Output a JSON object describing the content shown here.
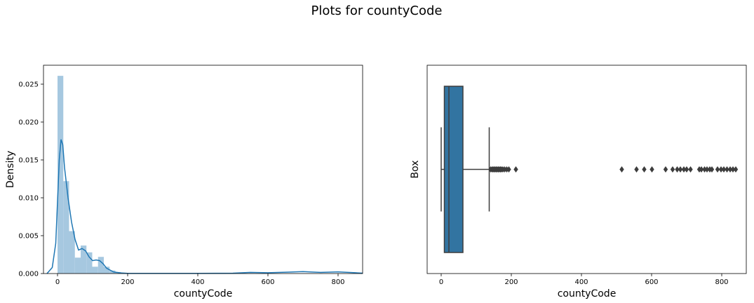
{
  "figure": {
    "suptitle": "Plots for countyCode"
  },
  "chart_data": [
    {
      "type": "histogram",
      "xlabel": "countyCode",
      "ylabel": "Density",
      "xlim": [
        -40,
        870
      ],
      "ylim": [
        0,
        0.0275
      ],
      "xticks": [
        0,
        200,
        400,
        600,
        800
      ],
      "yticks": [
        0.0,
        0.005,
        0.01,
        0.015,
        0.02,
        0.025
      ],
      "ytick_labels": [
        "0.000",
        "0.005",
        "0.010",
        "0.015",
        "0.020",
        "0.025"
      ],
      "bar_color": "#a6c8e0",
      "kde_color": "#1f77b4",
      "bins": [
        {
          "x0": 0,
          "x1": 16.5,
          "density": 0.0261
        },
        {
          "x0": 16.5,
          "x1": 33,
          "density": 0.0122
        },
        {
          "x0": 33,
          "x1": 49.5,
          "density": 0.0056
        },
        {
          "x0": 49.5,
          "x1": 66,
          "density": 0.0021
        },
        {
          "x0": 66,
          "x1": 82.5,
          "density": 0.0037
        },
        {
          "x0": 82.5,
          "x1": 99,
          "density": 0.0028
        },
        {
          "x0": 99,
          "x1": 115.5,
          "density": 0.0009
        },
        {
          "x0": 115.5,
          "x1": 132,
          "density": 0.0022
        },
        {
          "x0": 132,
          "x1": 148.5,
          "density": 0.0009
        },
        {
          "x0": 148.5,
          "x1": 165,
          "density": 0.0004
        },
        {
          "x0": 165,
          "x1": 181.5,
          "density": 0.0002
        },
        {
          "x0": 181.5,
          "x1": 198,
          "density": 0.0001
        }
      ],
      "kde": {
        "x": [
          -30,
          -15,
          -5,
          0,
          5,
          10,
          15,
          20,
          30,
          40,
          50,
          60,
          70,
          80,
          90,
          100,
          110,
          120,
          130,
          140,
          160,
          180,
          200,
          250,
          300,
          400,
          500,
          550,
          600,
          650,
          700,
          750,
          800,
          850,
          870
        ],
        "y": [
          0.0,
          0.0008,
          0.004,
          0.0095,
          0.015,
          0.0177,
          0.017,
          0.014,
          0.01,
          0.0068,
          0.0045,
          0.0031,
          0.0033,
          0.003,
          0.0022,
          0.0017,
          0.0018,
          0.0017,
          0.0013,
          0.0007,
          0.0002,
          8e-05,
          3e-05,
          2e-05,
          2e-05,
          2e-05,
          5e-05,
          0.00015,
          0.0001,
          0.00018,
          0.00025,
          0.00015,
          0.00022,
          0.0001,
          5e-05
        ]
      }
    },
    {
      "type": "boxplot",
      "xlabel": "countyCode",
      "ylabel": "Box",
      "xlim": [
        -40,
        870
      ],
      "xticks": [
        0,
        200,
        400,
        600,
        800
      ],
      "box_color": "#3274a1",
      "edge_color": "#3d3d3d",
      "stats": {
        "whisker_low": 0,
        "q1": 9,
        "median": 22,
        "q3": 62,
        "whisker_high": 137
      },
      "outliers": [
        141,
        145,
        148,
        151,
        154,
        157,
        160,
        163,
        166,
        169,
        172,
        176,
        181,
        187,
        193,
        213,
        515,
        557,
        579,
        601,
        640,
        660,
        673,
        682,
        692,
        700,
        711,
        736,
        742,
        751,
        758,
        766,
        772,
        788,
        798,
        806,
        815,
        824,
        832,
        840
      ]
    }
  ]
}
